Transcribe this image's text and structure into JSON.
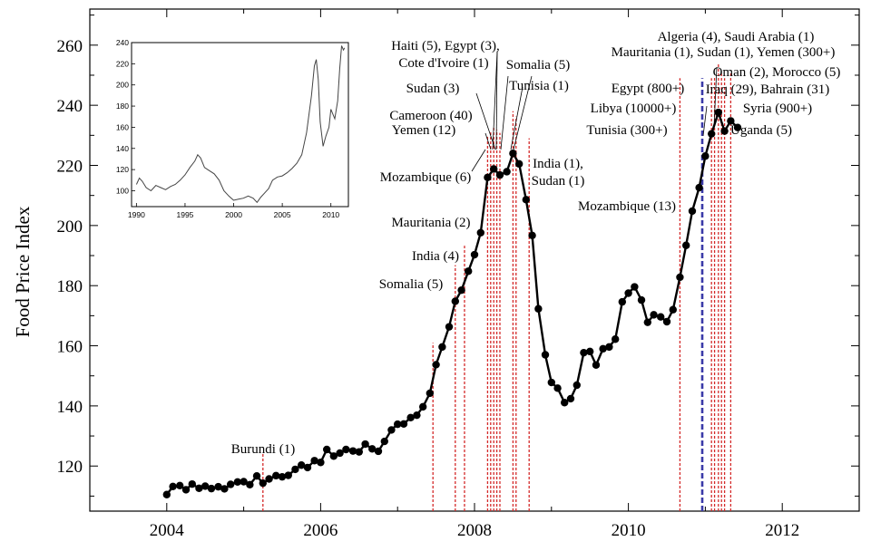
{
  "chart_data": [
    {
      "type": "line",
      "title": "",
      "xlabel": "",
      "ylabel": "Food Price Index",
      "xlim": [
        2003.0,
        2013.0
      ],
      "ylim": [
        105,
        272
      ],
      "x_ticks": [
        2004,
        2006,
        2008,
        2010,
        2012
      ],
      "x_tick_labels": [
        "2004",
        "2006",
        "2008",
        "2010",
        "2012"
      ],
      "y_ticks": [
        120,
        140,
        160,
        180,
        200,
        220,
        240,
        260
      ],
      "y_tick_labels": [
        "120",
        "140",
        "160",
        "180",
        "200",
        "220",
        "240",
        "260"
      ],
      "grid": false,
      "series": [
        {
          "points": [
            [
              2004.0,
              110.5
            ],
            [
              2004.08,
              113.2
            ],
            [
              2004.17,
              113.5
            ],
            [
              2004.25,
              112.1
            ],
            [
              2004.33,
              114.0
            ],
            [
              2004.42,
              112.6
            ],
            [
              2004.5,
              113.3
            ],
            [
              2004.58,
              112.5
            ],
            [
              2004.67,
              113.1
            ],
            [
              2004.75,
              112.4
            ],
            [
              2004.83,
              113.9
            ],
            [
              2004.92,
              114.7
            ],
            [
              2005.0,
              114.8
            ],
            [
              2005.08,
              113.8
            ],
            [
              2005.17,
              116.7
            ],
            [
              2005.25,
              114.3
            ],
            [
              2005.33,
              115.7
            ],
            [
              2005.42,
              116.8
            ],
            [
              2005.5,
              116.4
            ],
            [
              2005.58,
              116.9
            ],
            [
              2005.67,
              118.9
            ],
            [
              2005.75,
              120.3
            ],
            [
              2005.83,
              119.5
            ],
            [
              2005.92,
              121.8
            ],
            [
              2006.0,
              121.2
            ],
            [
              2006.08,
              125.5
            ],
            [
              2006.17,
              123.3
            ],
            [
              2006.25,
              124.3
            ],
            [
              2006.33,
              125.5
            ],
            [
              2006.42,
              125.0
            ],
            [
              2006.5,
              124.7
            ],
            [
              2006.58,
              127.3
            ],
            [
              2006.67,
              125.7
            ],
            [
              2006.75,
              124.9
            ],
            [
              2006.83,
              128.2
            ],
            [
              2006.92,
              132.0
            ],
            [
              2007.0,
              133.9
            ],
            [
              2007.08,
              134.0
            ],
            [
              2007.17,
              136.1
            ],
            [
              2007.25,
              136.9
            ],
            [
              2007.33,
              139.7
            ],
            [
              2007.42,
              144.2
            ],
            [
              2007.5,
              153.7
            ],
            [
              2007.58,
              159.6
            ],
            [
              2007.67,
              166.3
            ],
            [
              2007.75,
              174.8
            ],
            [
              2007.83,
              178.5
            ],
            [
              2007.92,
              184.8
            ],
            [
              2008.0,
              190.3
            ],
            [
              2008.08,
              197.6
            ],
            [
              2008.17,
              216.0
            ],
            [
              2008.25,
              218.8
            ],
            [
              2008.33,
              216.8
            ],
            [
              2008.42,
              217.9
            ],
            [
              2008.5,
              224.0
            ],
            [
              2008.58,
              220.5
            ],
            [
              2008.67,
              208.6
            ],
            [
              2008.75,
              196.7
            ],
            [
              2008.83,
              172.3
            ],
            [
              2008.92,
              157.0
            ],
            [
              2009.0,
              147.8
            ],
            [
              2009.08,
              145.9
            ],
            [
              2009.17,
              141.1
            ],
            [
              2009.25,
              142.4
            ],
            [
              2009.33,
              146.9
            ],
            [
              2009.42,
              157.7
            ],
            [
              2009.5,
              158.1
            ],
            [
              2009.58,
              153.6
            ],
            [
              2009.67,
              159.0
            ],
            [
              2009.75,
              159.6
            ],
            [
              2009.83,
              162.2
            ],
            [
              2009.92,
              174.6
            ],
            [
              2010.0,
              177.5
            ],
            [
              2010.08,
              179.6
            ],
            [
              2010.17,
              175.2
            ],
            [
              2010.25,
              167.8
            ],
            [
              2010.33,
              170.3
            ],
            [
              2010.42,
              169.6
            ],
            [
              2010.5,
              168.0
            ],
            [
              2010.58,
              172.0
            ],
            [
              2010.67,
              182.8
            ],
            [
              2010.75,
              193.4
            ],
            [
              2010.83,
              204.8
            ],
            [
              2010.92,
              212.6
            ],
            [
              2011.0,
              223.1
            ],
            [
              2011.08,
              230.5
            ],
            [
              2011.17,
              237.6
            ],
            [
              2011.25,
              231.4
            ],
            [
              2011.33,
              234.8
            ],
            [
              2011.42,
              232.6
            ]
          ]
        }
      ],
      "event_markers": [
        {
          "date": 2005.25,
          "label": "Burundi (1)"
        },
        {
          "date": 2007.46,
          "label": "Somalia (5)"
        },
        {
          "date": 2007.75,
          "label": "India (4)"
        },
        {
          "date": 2007.87,
          "label": "Mauritania (2)"
        },
        {
          "date": 2008.17,
          "label": "Mozambique (6)"
        },
        {
          "date": 2008.21,
          "label": "Yemen (12)"
        },
        {
          "date": 2008.25,
          "label": "Cameroon (40)"
        },
        {
          "date": 2008.29,
          "label": "Sudan (3)"
        },
        {
          "date": 2008.33,
          "label": "Haiti (5), Egypt (3), Cote d'Ivoire (1)"
        },
        {
          "date": 2008.5,
          "label": "Somalia (5)"
        },
        {
          "date": 2008.54,
          "label": "Tunisia (1)"
        },
        {
          "date": 2008.71,
          "label": "India (1), Sudan (1)"
        },
        {
          "date": 2010.67,
          "label": "Mozambique (13)"
        },
        {
          "date": 2010.96,
          "label": "Tunisia (300+)"
        },
        {
          "date": 2011.08,
          "label": "Egypt (800+)"
        },
        {
          "date": 2011.12,
          "label": "Libya (10000+)"
        },
        {
          "date": 2011.17,
          "label": "Algeria (4), Saudi Arabia (1), Mauritania (1), Sudan (1), Yemen (300+)"
        },
        {
          "date": 2011.21,
          "label": "Oman (2), Morocco (5), Iraq (29), Bahrain (31)"
        },
        {
          "date": 2011.25,
          "label": "Syria (900+)"
        },
        {
          "date": 2011.33,
          "label": "Uganda (5)"
        }
      ],
      "annotations": [
        "Burundi (1)",
        "Somalia (5)",
        "India (4)",
        "Mauritania (2)",
        "Mozambique (6)",
        "Yemen (12)",
        "Cameroon (40)",
        "Sudan (3)",
        "Haiti (5), Egypt (3),",
        "Cote d'Ivoire (1)",
        "Somalia (5)",
        "Tunisia (1)",
        "India (1),",
        "Sudan (1)",
        "Mozambique (13)",
        "Tunisia (300+)",
        "Libya (10000+)",
        "Egypt (800+)",
        "Algeria (4), Saudi Arabia (1)",
        "Mauritania (1), Sudan (1), Yemen (300+)",
        "Oman (2), Morocco (5)",
        "Iraq (29), Bahrain (31)",
        "Syria (900+)",
        "Uganda (5)"
      ],
      "colors": {
        "line": "#000000",
        "event": "#d42a2a",
        "highlight_event": "#3a3aa8"
      }
    },
    {
      "type": "line",
      "title": "",
      "xlabel": "",
      "ylabel": "",
      "xlim": [
        1989.5,
        2011.8
      ],
      "ylim": [
        85,
        240
      ],
      "x_ticks": [
        1990,
        1995,
        2000,
        2005,
        2010
      ],
      "x_tick_labels": [
        "1990",
        "1995",
        "2000",
        "2005",
        "2010"
      ],
      "y_ticks": [
        100,
        120,
        140,
        160,
        180,
        200,
        220,
        240
      ],
      "y_tick_labels": [
        "100",
        "120",
        "140",
        "160",
        "180",
        "200",
        "220",
        "240"
      ],
      "grid": false,
      "series": [
        {
          "points": [
            [
              1990.0,
              106
            ],
            [
              1990.3,
              112
            ],
            [
              1990.6,
              109
            ],
            [
              1991.0,
              103
            ],
            [
              1991.5,
              100
            ],
            [
              1992.0,
              105
            ],
            [
              1992.5,
              103
            ],
            [
              1993.0,
              101
            ],
            [
              1993.5,
              104
            ],
            [
              1994.0,
              106
            ],
            [
              1994.5,
              110
            ],
            [
              1995.0,
              115
            ],
            [
              1995.5,
              122
            ],
            [
              1996.0,
              128
            ],
            [
              1996.3,
              134
            ],
            [
              1996.6,
              131
            ],
            [
              1997.0,
              122
            ],
            [
              1997.5,
              119
            ],
            [
              1998.0,
              116
            ],
            [
              1998.5,
              110
            ],
            [
              1999.0,
              100
            ],
            [
              1999.5,
              95
            ],
            [
              2000.0,
              91
            ],
            [
              2000.5,
              92
            ],
            [
              2001.0,
              93
            ],
            [
              2001.5,
              95
            ],
            [
              2002.0,
              93
            ],
            [
              2002.4,
              89
            ],
            [
              2002.8,
              94
            ],
            [
              2003.2,
              98
            ],
            [
              2003.6,
              102
            ],
            [
              2004.0,
              110
            ],
            [
              2004.5,
              113
            ],
            [
              2005.0,
              114
            ],
            [
              2005.5,
              117
            ],
            [
              2006.0,
              121
            ],
            [
              2006.5,
              126
            ],
            [
              2007.0,
              134
            ],
            [
              2007.5,
              155
            ],
            [
              2008.0,
              190
            ],
            [
              2008.3,
              218
            ],
            [
              2008.5,
              224
            ],
            [
              2008.7,
              205
            ],
            [
              2008.9,
              165
            ],
            [
              2009.2,
              142
            ],
            [
              2009.5,
              152
            ],
            [
              2009.8,
              160
            ],
            [
              2010.0,
              177
            ],
            [
              2010.4,
              168
            ],
            [
              2010.7,
              185
            ],
            [
              2010.9,
              215
            ],
            [
              2011.1,
              237
            ],
            [
              2011.3,
              233
            ],
            [
              2011.4,
              235
            ]
          ]
        }
      ],
      "colors": {
        "line": "#444444"
      }
    }
  ]
}
